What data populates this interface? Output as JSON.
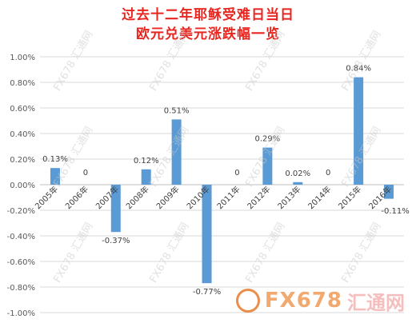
{
  "chart_data": {
    "type": "bar",
    "title_line1": "过去十二年耶稣受难日当日",
    "title_line2": "欧元兑美元涨跌幅一览",
    "categories": [
      "2005年",
      "2006年",
      "2007年",
      "2008年",
      "2009年",
      "2010年",
      "2011年",
      "2012年",
      "2013年",
      "2014年",
      "2015年",
      "2016年"
    ],
    "values": [
      0.13,
      0,
      -0.37,
      0.12,
      0.51,
      -0.77,
      0,
      0.29,
      0.02,
      0,
      0.84,
      -0.11
    ],
    "data_labels": [
      "0.13%",
      "0",
      "-0.37%",
      "0.12%",
      "0.51%",
      "-0.77%",
      "0",
      "0.29%",
      "0.02%",
      "0",
      "0.84%",
      "-0.11%"
    ],
    "ylim": [
      -1.0,
      1.0
    ],
    "yticks": [
      1.0,
      0.8,
      0.6,
      0.4,
      0.2,
      0.0,
      -0.2,
      -0.4,
      -0.6,
      -0.8,
      -1.0
    ],
    "ytick_labels": [
      "1.00%",
      "0.80%",
      "0.60%",
      "0.40%",
      "0.20%",
      "0.00%",
      "-0.20%",
      "-0.40%",
      "-0.60%",
      "-0.80%",
      "-1.00%"
    ],
    "grid": true,
    "bar_color": "#5b9bd5",
    "title_color": "#e8251f"
  },
  "watermark": {
    "small_text": "FX678 汇通网",
    "big_text_latin": "FX678",
    "big_text_cjk": "汇通网"
  }
}
